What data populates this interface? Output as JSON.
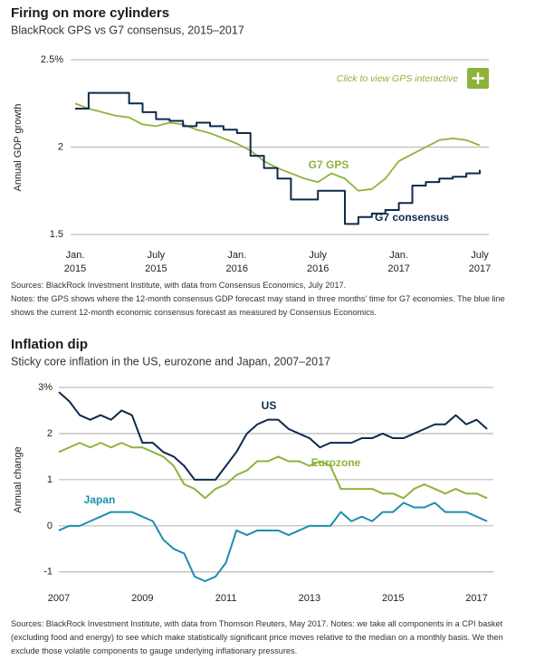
{
  "chart_data": [
    {
      "type": "line",
      "title": "Firing on more cylinders",
      "subtitle": "BlackRock GPS vs G7 consensus, 2015–2017",
      "y_label": "Annual GDP growth",
      "annotation": "Click to view GPS interactive",
      "x": [
        "2015-01",
        "2015-02",
        "2015-03",
        "2015-04",
        "2015-05",
        "2015-06",
        "2015-07",
        "2015-08",
        "2015-09",
        "2015-10",
        "2015-11",
        "2015-12",
        "2016-01",
        "2016-02",
        "2016-03",
        "2016-04",
        "2016-05",
        "2016-06",
        "2016-07",
        "2016-08",
        "2016-09",
        "2016-10",
        "2016-11",
        "2016-12",
        "2017-01",
        "2017-02",
        "2017-03",
        "2017-04",
        "2017-05",
        "2017-06",
        "2017-07"
      ],
      "series": [
        {
          "name": "G7 GPS",
          "color": "#8db33a",
          "values": [
            2.25,
            2.22,
            2.2,
            2.18,
            2.17,
            2.13,
            2.12,
            2.14,
            2.13,
            2.1,
            2.08,
            2.05,
            2.02,
            1.98,
            1.92,
            1.88,
            1.85,
            1.82,
            1.8,
            1.85,
            1.82,
            1.75,
            1.76,
            1.82,
            1.92,
            1.96,
            2.0,
            2.04,
            2.05,
            2.04,
            2.01
          ]
        },
        {
          "name": "G7 consensus",
          "color": "#0d2a4e",
          "step": true,
          "values": [
            2.22,
            2.31,
            2.31,
            2.31,
            2.25,
            2.2,
            2.16,
            2.15,
            2.12,
            2.14,
            2.12,
            2.1,
            2.08,
            1.95,
            1.88,
            1.82,
            1.7,
            1.7,
            1.75,
            1.75,
            1.56,
            1.6,
            1.62,
            1.64,
            1.68,
            1.78,
            1.8,
            1.82,
            1.83,
            1.85,
            1.87
          ]
        }
      ],
      "ylim": [
        1.5,
        2.5
      ],
      "yticks": [
        1.5,
        2,
        {
          "value": 2.5,
          "label": "2.5%"
        }
      ],
      "xticks": [
        {
          "value": "2015-01",
          "label": "Jan. 2015"
        },
        {
          "value": "2015-07",
          "label": "July 2015"
        },
        {
          "value": "2016-01",
          "label": "Jan. 2016"
        },
        {
          "value": "2016-07",
          "label": "July 2016"
        },
        {
          "value": "2017-01",
          "label": "Jan. 2017"
        },
        {
          "value": "2017-07",
          "label": "July 2017"
        }
      ],
      "grid": true,
      "source": "Sources: BlackRock Investment Institute, with data from Consensus Economics, July 2017.",
      "notes": "Notes: the GPS shows where the 12-month consensus GDP forecast may stand in three months' time for G7 economies. The blue line shows the current 12-month economic consensus forecast as measured by Consensus Economics."
    },
    {
      "type": "line",
      "title": "Inflation dip",
      "subtitle": "Sticky core inflation in the US, eurozone and Japan, 2007–2017",
      "y_label": "Annual change",
      "x": [
        2007,
        2007.25,
        2007.5,
        2007.75,
        2008,
        2008.25,
        2008.5,
        2008.75,
        2009,
        2009.25,
        2009.5,
        2009.75,
        2010,
        2010.25,
        2010.5,
        2010.75,
        2011,
        2011.25,
        2011.5,
        2011.75,
        2012,
        2012.25,
        2012.5,
        2012.75,
        2013,
        2013.25,
        2013.5,
        2013.75,
        2014,
        2014.25,
        2014.5,
        2014.75,
        2015,
        2015.25,
        2015.5,
        2015.75,
        2016,
        2016.25,
        2016.5,
        2016.75,
        2017,
        2017.25
      ],
      "series": [
        {
          "name": "US",
          "color": "#0d2a4e",
          "values": [
            2.9,
            2.7,
            2.4,
            2.3,
            2.4,
            2.3,
            2.5,
            2.4,
            1.8,
            1.8,
            1.6,
            1.5,
            1.3,
            1.0,
            1.0,
            1.0,
            1.3,
            1.6,
            2.0,
            2.2,
            2.3,
            2.3,
            2.1,
            2.0,
            1.9,
            1.7,
            1.8,
            1.8,
            1.8,
            1.9,
            1.9,
            2.0,
            1.9,
            1.9,
            2.0,
            2.1,
            2.2,
            2.2,
            2.4,
            2.2,
            2.3,
            2.1
          ]
        },
        {
          "name": "Eurozone",
          "color": "#8db33a",
          "values": [
            1.6,
            1.7,
            1.8,
            1.7,
            1.8,
            1.7,
            1.8,
            1.7,
            1.7,
            1.6,
            1.5,
            1.3,
            0.9,
            0.8,
            0.6,
            0.8,
            0.9,
            1.1,
            1.2,
            1.4,
            1.4,
            1.5,
            1.4,
            1.4,
            1.3,
            1.4,
            1.3,
            0.8,
            0.8,
            0.8,
            0.8,
            0.7,
            0.7,
            0.6,
            0.8,
            0.9,
            0.8,
            0.7,
            0.8,
            0.7,
            0.7,
            0.6
          ]
        },
        {
          "name": "Japan",
          "color": "#1a8fb0",
          "values": [
            -0.1,
            0.0,
            0.0,
            0.1,
            0.2,
            0.3,
            0.3,
            0.3,
            0.2,
            0.1,
            -0.3,
            -0.5,
            -0.6,
            -1.1,
            -1.2,
            -1.1,
            -0.8,
            -0.1,
            -0.2,
            -0.1,
            -0.1,
            -0.1,
            -0.2,
            -0.1,
            0.0,
            0.0,
            0.0,
            0.3,
            0.1,
            0.2,
            0.1,
            0.3,
            0.3,
            0.5,
            0.4,
            0.4,
            0.5,
            0.3,
            0.3,
            0.3,
            0.2,
            0.1
          ]
        }
      ],
      "xlim": [
        2007,
        2017.4
      ],
      "ylim": [
        -1.2,
        3
      ],
      "xticks": [
        2007,
        2009,
        2011,
        2013,
        2015,
        2017
      ],
      "yticks": [
        -1,
        0,
        1,
        2,
        {
          "value": 3,
          "label": "3%"
        }
      ],
      "grid": true,
      "source": "Sources: BlackRock Investment Institute, with data from Thomson Reuters, May 2017. Notes: we take all components in a CPI basket (excluding food and energy) to see which make statistically significant price moves relative to the median on a monthly basis. We then exclude those volatile components to gauge underlying inflationary pressures."
    }
  ]
}
